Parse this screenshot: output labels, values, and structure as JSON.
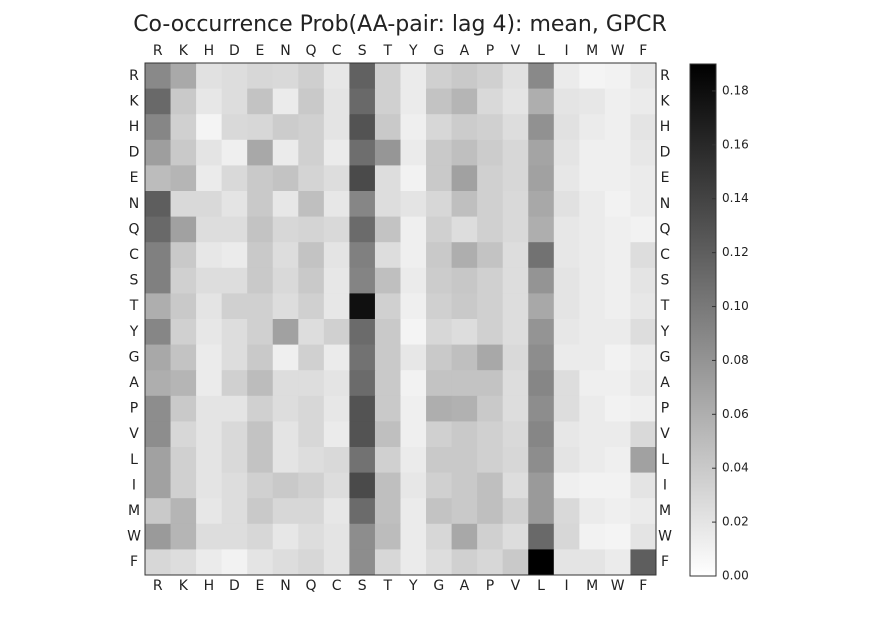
{
  "chart_data": {
    "type": "heatmap",
    "title": "Co-occurrence Prob(AA-pair: lag 4): mean, GPCR",
    "x_labels": [
      "R",
      "K",
      "H",
      "D",
      "E",
      "N",
      "Q",
      "C",
      "S",
      "T",
      "Y",
      "G",
      "A",
      "P",
      "V",
      "L",
      "I",
      "M",
      "W",
      "F"
    ],
    "y_labels": [
      "R",
      "K",
      "H",
      "D",
      "E",
      "N",
      "Q",
      "C",
      "S",
      "T",
      "Y",
      "G",
      "A",
      "P",
      "V",
      "L",
      "I",
      "M",
      "W",
      "F"
    ],
    "colorbar": {
      "min": 0.0,
      "max": 0.19,
      "ticks": [
        "0.00",
        "0.02",
        "0.04",
        "0.06",
        "0.08",
        "0.10",
        "0.12",
        "0.14",
        "0.16",
        "0.18"
      ],
      "colormap": "greys"
    },
    "values": [
      [
        0.088,
        0.064,
        0.022,
        0.025,
        0.03,
        0.028,
        0.036,
        0.018,
        0.118,
        0.035,
        0.015,
        0.035,
        0.04,
        0.035,
        0.022,
        0.088,
        0.015,
        0.008,
        0.01,
        0.018
      ],
      [
        0.112,
        0.04,
        0.018,
        0.025,
        0.045,
        0.015,
        0.04,
        0.02,
        0.112,
        0.035,
        0.015,
        0.045,
        0.055,
        0.028,
        0.02,
        0.06,
        0.02,
        0.018,
        0.012,
        0.015
      ],
      [
        0.09,
        0.035,
        0.008,
        0.028,
        0.03,
        0.038,
        0.035,
        0.02,
        0.128,
        0.04,
        0.012,
        0.03,
        0.038,
        0.035,
        0.025,
        0.082,
        0.022,
        0.015,
        0.012,
        0.02
      ],
      [
        0.072,
        0.04,
        0.02,
        0.012,
        0.065,
        0.015,
        0.035,
        0.015,
        0.108,
        0.078,
        0.015,
        0.04,
        0.048,
        0.038,
        0.03,
        0.068,
        0.02,
        0.012,
        0.012,
        0.018
      ],
      [
        0.05,
        0.055,
        0.015,
        0.028,
        0.04,
        0.045,
        0.032,
        0.025,
        0.135,
        0.025,
        0.01,
        0.04,
        0.07,
        0.035,
        0.03,
        0.07,
        0.018,
        0.012,
        0.012,
        0.015
      ],
      [
        0.12,
        0.028,
        0.028,
        0.02,
        0.04,
        0.018,
        0.048,
        0.018,
        0.09,
        0.025,
        0.02,
        0.03,
        0.048,
        0.035,
        0.028,
        0.065,
        0.022,
        0.015,
        0.01,
        0.015
      ],
      [
        0.112,
        0.07,
        0.025,
        0.025,
        0.045,
        0.03,
        0.032,
        0.028,
        0.11,
        0.045,
        0.012,
        0.035,
        0.025,
        0.035,
        0.028,
        0.06,
        0.018,
        0.015,
        0.012,
        0.01
      ],
      [
        0.095,
        0.04,
        0.018,
        0.015,
        0.04,
        0.025,
        0.045,
        0.02,
        0.095,
        0.025,
        0.012,
        0.04,
        0.06,
        0.045,
        0.025,
        0.105,
        0.018,
        0.015,
        0.012,
        0.025
      ],
      [
        0.095,
        0.035,
        0.025,
        0.025,
        0.04,
        0.028,
        0.04,
        0.018,
        0.092,
        0.048,
        0.015,
        0.038,
        0.042,
        0.035,
        0.025,
        0.08,
        0.02,
        0.015,
        0.012,
        0.02
      ],
      [
        0.06,
        0.04,
        0.02,
        0.035,
        0.035,
        0.025,
        0.035,
        0.018,
        0.178,
        0.035,
        0.012,
        0.035,
        0.04,
        0.035,
        0.025,
        0.065,
        0.02,
        0.015,
        0.012,
        0.018
      ],
      [
        0.09,
        0.035,
        0.018,
        0.025,
        0.035,
        0.07,
        0.025,
        0.035,
        0.11,
        0.04,
        0.008,
        0.03,
        0.025,
        0.035,
        0.025,
        0.08,
        0.018,
        0.015,
        0.015,
        0.025
      ],
      [
        0.065,
        0.045,
        0.015,
        0.025,
        0.04,
        0.012,
        0.035,
        0.015,
        0.105,
        0.04,
        0.018,
        0.04,
        0.048,
        0.065,
        0.028,
        0.085,
        0.015,
        0.015,
        0.01,
        0.015
      ],
      [
        0.06,
        0.055,
        0.015,
        0.035,
        0.05,
        0.025,
        0.025,
        0.02,
        0.11,
        0.04,
        0.01,
        0.045,
        0.045,
        0.045,
        0.025,
        0.09,
        0.025,
        0.012,
        0.012,
        0.018
      ],
      [
        0.085,
        0.04,
        0.02,
        0.02,
        0.035,
        0.025,
        0.03,
        0.018,
        0.128,
        0.04,
        0.012,
        0.06,
        0.058,
        0.04,
        0.025,
        0.085,
        0.025,
        0.015,
        0.01,
        0.012
      ],
      [
        0.085,
        0.03,
        0.02,
        0.028,
        0.045,
        0.02,
        0.03,
        0.015,
        0.128,
        0.048,
        0.012,
        0.035,
        0.04,
        0.035,
        0.028,
        0.09,
        0.018,
        0.015,
        0.015,
        0.028
      ],
      [
        0.07,
        0.035,
        0.02,
        0.028,
        0.045,
        0.02,
        0.025,
        0.028,
        0.105,
        0.035,
        0.015,
        0.04,
        0.04,
        0.035,
        0.03,
        0.085,
        0.02,
        0.015,
        0.012,
        0.07
      ],
      [
        0.07,
        0.035,
        0.02,
        0.025,
        0.035,
        0.04,
        0.035,
        0.025,
        0.135,
        0.048,
        0.018,
        0.035,
        0.04,
        0.048,
        0.025,
        0.075,
        0.012,
        0.01,
        0.01,
        0.02
      ],
      [
        0.04,
        0.055,
        0.018,
        0.025,
        0.04,
        0.03,
        0.03,
        0.018,
        0.11,
        0.048,
        0.015,
        0.045,
        0.04,
        0.048,
        0.035,
        0.075,
        0.028,
        0.015,
        0.012,
        0.015
      ],
      [
        0.075,
        0.055,
        0.025,
        0.025,
        0.03,
        0.018,
        0.025,
        0.02,
        0.085,
        0.05,
        0.015,
        0.03,
        0.065,
        0.035,
        0.025,
        0.112,
        0.03,
        0.01,
        0.008,
        0.02
      ],
      [
        0.03,
        0.025,
        0.015,
        0.01,
        0.02,
        0.025,
        0.03,
        0.02,
        0.085,
        0.03,
        0.015,
        0.025,
        0.035,
        0.03,
        0.04,
        0.19,
        0.02,
        0.02,
        0.015,
        0.12
      ]
    ]
  }
}
